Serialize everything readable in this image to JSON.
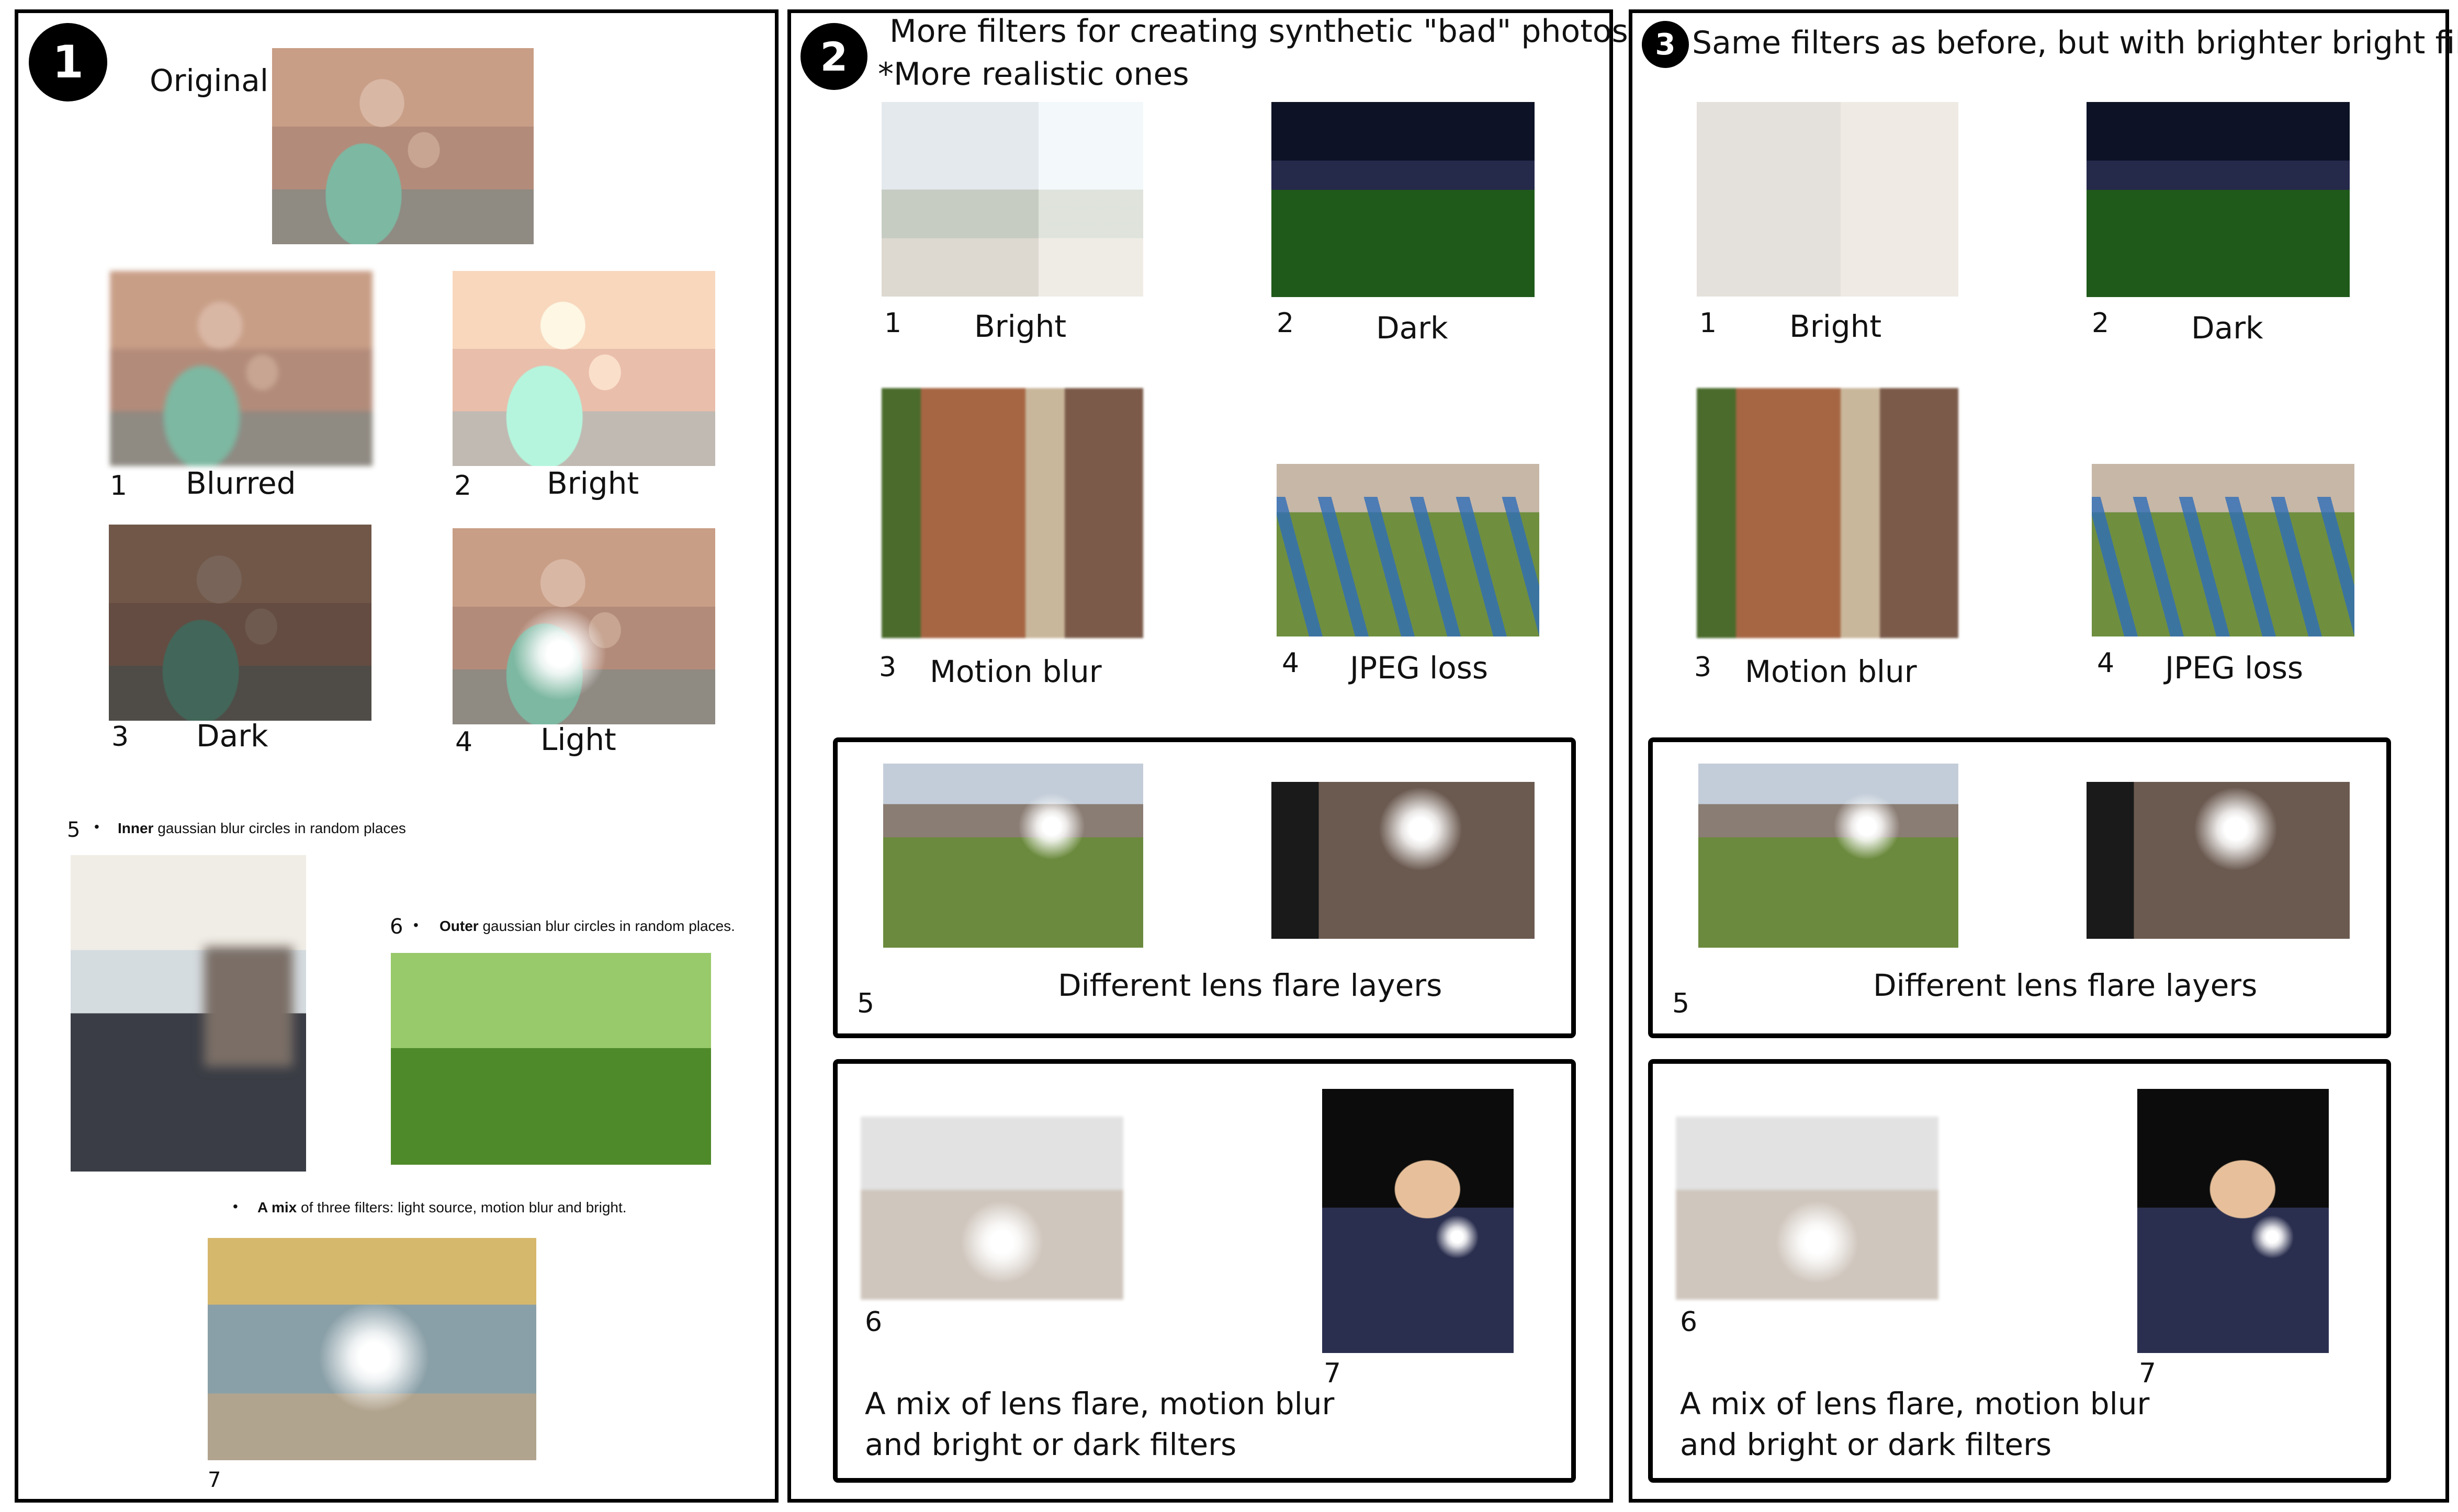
{
  "panel1": {
    "badge": "1",
    "original_label": "Original",
    "items": [
      {
        "num": "1",
        "label": "Blurred"
      },
      {
        "num": "2",
        "label": "Bright"
      },
      {
        "num": "3",
        "label": "Dark"
      },
      {
        "num": "4",
        "label": "Light"
      }
    ],
    "item5": {
      "num": "5",
      "bullet": "•",
      "bold": "Inner",
      "text": " gaussian blur circles in random places"
    },
    "item6": {
      "num": "6",
      "bullet": "•",
      "bold": "Outer",
      "text": " gaussian blur circles in random places."
    },
    "item7": {
      "num": "7",
      "bullet": "•",
      "bold": "A mix",
      "text": " of three filters: light source, motion blur and bright."
    }
  },
  "panel2": {
    "badge": "2",
    "title_line1": "More filters for creating synthetic \"bad\" photos",
    "title_line2": "*More realistic ones",
    "items": [
      {
        "num": "1",
        "label": "Bright"
      },
      {
        "num": "2",
        "label": "Dark"
      },
      {
        "num": "3",
        "label": "Motion blur"
      },
      {
        "num": "4",
        "label": "JPEG loss"
      }
    ],
    "box5": {
      "num": "5",
      "label": "Different lens flare layers"
    },
    "box6": {
      "num6": "6",
      "num7": "7",
      "line1": "A mix of lens flare, motion blur",
      "line2": "and bright or dark filters"
    }
  },
  "panel3": {
    "badge": "3",
    "title": "Same filters as before, but with brighter bright filter",
    "items": [
      {
        "num": "1",
        "label": "Bright"
      },
      {
        "num": "2",
        "label": "Dark"
      },
      {
        "num": "3",
        "label": "Motion blur"
      },
      {
        "num": "4",
        "label": "JPEG loss"
      }
    ],
    "box5": {
      "num": "5",
      "label": "Different lens flare layers"
    },
    "box6": {
      "num6": "6",
      "num7": "7",
      "line1": "A mix of lens flare, motion blur",
      "line2": "and bright or dark filters"
    }
  }
}
